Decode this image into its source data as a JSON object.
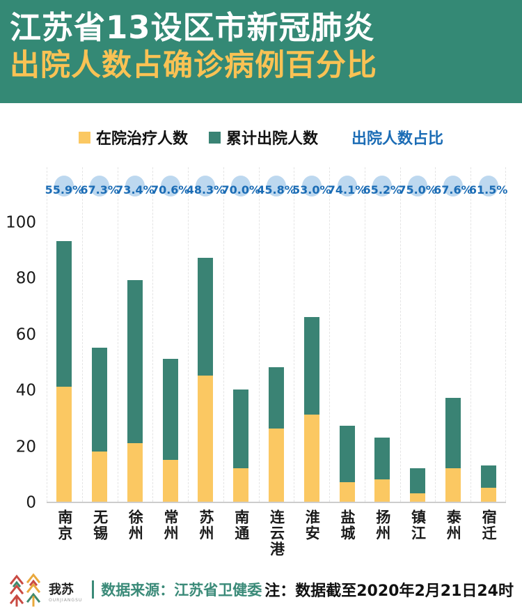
{
  "header": {
    "title_line1": "江苏省13设区市新冠肺炎",
    "title_line2": "出院人数占确诊病例百分比"
  },
  "legend": {
    "inpatient_label": "在院治疗人数",
    "discharged_label": "累计出院人数",
    "ratio_label": "出院人数占比"
  },
  "colors": {
    "header_bg": "#348975",
    "title_line1": "#ffffff",
    "title_line2": "#f9c254",
    "bar_yellow": "#fbc862",
    "bar_green": "#3a8374",
    "pct_text": "#1b6cb5",
    "pct_circle": "#bdd8ef",
    "grid": "#e4e4e4",
    "source_text": "#3a8a78"
  },
  "chart_data": {
    "type": "bar",
    "stacked": true,
    "title": "江苏省13设区市新冠肺炎出院人数占确诊病例百分比",
    "categories": [
      "南京",
      "无锡",
      "徐州",
      "常州",
      "苏州",
      "南通",
      "连云港",
      "淮安",
      "盐城",
      "扬州",
      "镇江",
      "泰州",
      "宿迁"
    ],
    "series": [
      {
        "name": "在院治疗人数",
        "color": "#fbc862",
        "values": [
          41,
          18,
          21,
          15,
          45,
          12,
          26,
          31,
          7,
          8,
          3,
          12,
          5
        ]
      },
      {
        "name": "累计出院人数",
        "color": "#3a8374",
        "values": [
          52,
          37,
          58,
          36,
          42,
          28,
          22,
          35,
          20,
          15,
          9,
          25,
          8
        ]
      }
    ],
    "totals": [
      93,
      55,
      79,
      51,
      87,
      40,
      48,
      66,
      27,
      23,
      12,
      37,
      13
    ],
    "percent_labels": [
      "55.9%",
      "67.3%",
      "73.4%",
      "70.6%",
      "48.3%",
      "70.0%",
      "45.8%",
      "53.0%",
      "74.1%",
      "65.2%",
      "75.0%",
      "67.6%",
      "61.5%"
    ],
    "y_ticks": [
      0,
      20,
      40,
      60,
      80,
      100
    ],
    "ylim": [
      0,
      100
    ],
    "xlabel": "",
    "ylabel": "",
    "grid": "vertical-dashed",
    "legend_position": "top"
  },
  "footer": {
    "logo_cn": "我苏",
    "logo_en": "OURJIANGSU",
    "source": "数据来源：江苏省卫健委",
    "note": "注：数据截至2020年2月21日24时"
  }
}
